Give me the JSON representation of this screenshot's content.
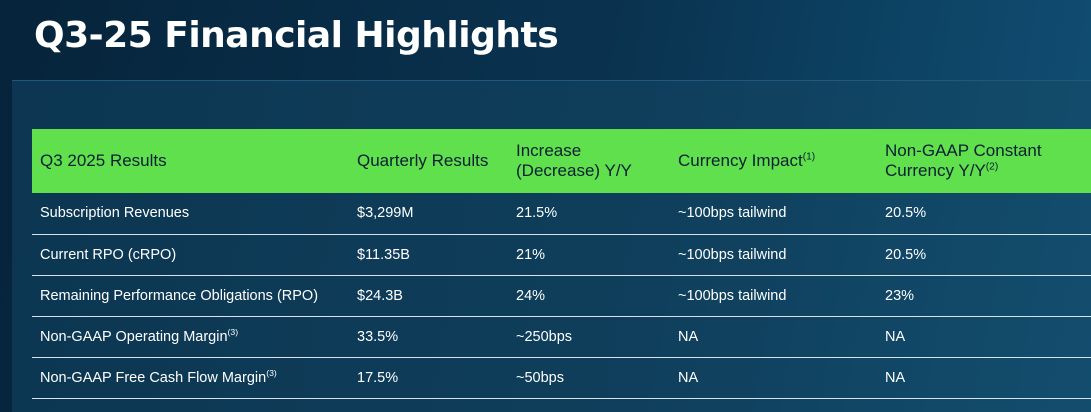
{
  "slide": {
    "title": "Q3-25 Financial Highlights"
  },
  "table": {
    "headers": [
      {
        "text": "Q3 2025 Results",
        "sup": ""
      },
      {
        "text": "Quarterly Results",
        "sup": ""
      },
      {
        "text": "Increase (Decrease) Y/Y",
        "sup": ""
      },
      {
        "text": "Currency Impact",
        "sup": "(1)"
      },
      {
        "text": "Non-GAAP Constant Currency Y/Y",
        "sup": "(2)"
      }
    ],
    "rows": [
      {
        "metric": "Subscription Revenues",
        "metric_sup": "",
        "quarterly": "$3,299M",
        "yoy": "21.5%",
        "currency": "~100bps tailwind",
        "constant_currency": "20.5%"
      },
      {
        "metric": "Current RPO (cRPO)",
        "metric_sup": "",
        "quarterly": "$11.35B",
        "yoy": "21%",
        "currency": "~100bps tailwind",
        "constant_currency": "20.5%"
      },
      {
        "metric": "Remaining Performance Obligations (RPO)",
        "metric_sup": "",
        "quarterly": "$24.3B",
        "yoy": "24%",
        "currency": "~100bps tailwind",
        "constant_currency": "23%"
      },
      {
        "metric": "Non-GAAP Operating Margin",
        "metric_sup": "(3)",
        "quarterly": "33.5%",
        "yoy": "~250bps",
        "currency": "NA",
        "constant_currency": "NA"
      },
      {
        "metric": "Non-GAAP Free Cash Flow Margin",
        "metric_sup": "(3)",
        "quarterly": "17.5%",
        "yoy": "~50bps",
        "currency": "NA",
        "constant_currency": "NA"
      }
    ]
  },
  "colors": {
    "header_bg": "#5fe04c",
    "header_text": "#0a1f33",
    "background": "#0a3350",
    "row_divider": "#d8e2ea"
  }
}
